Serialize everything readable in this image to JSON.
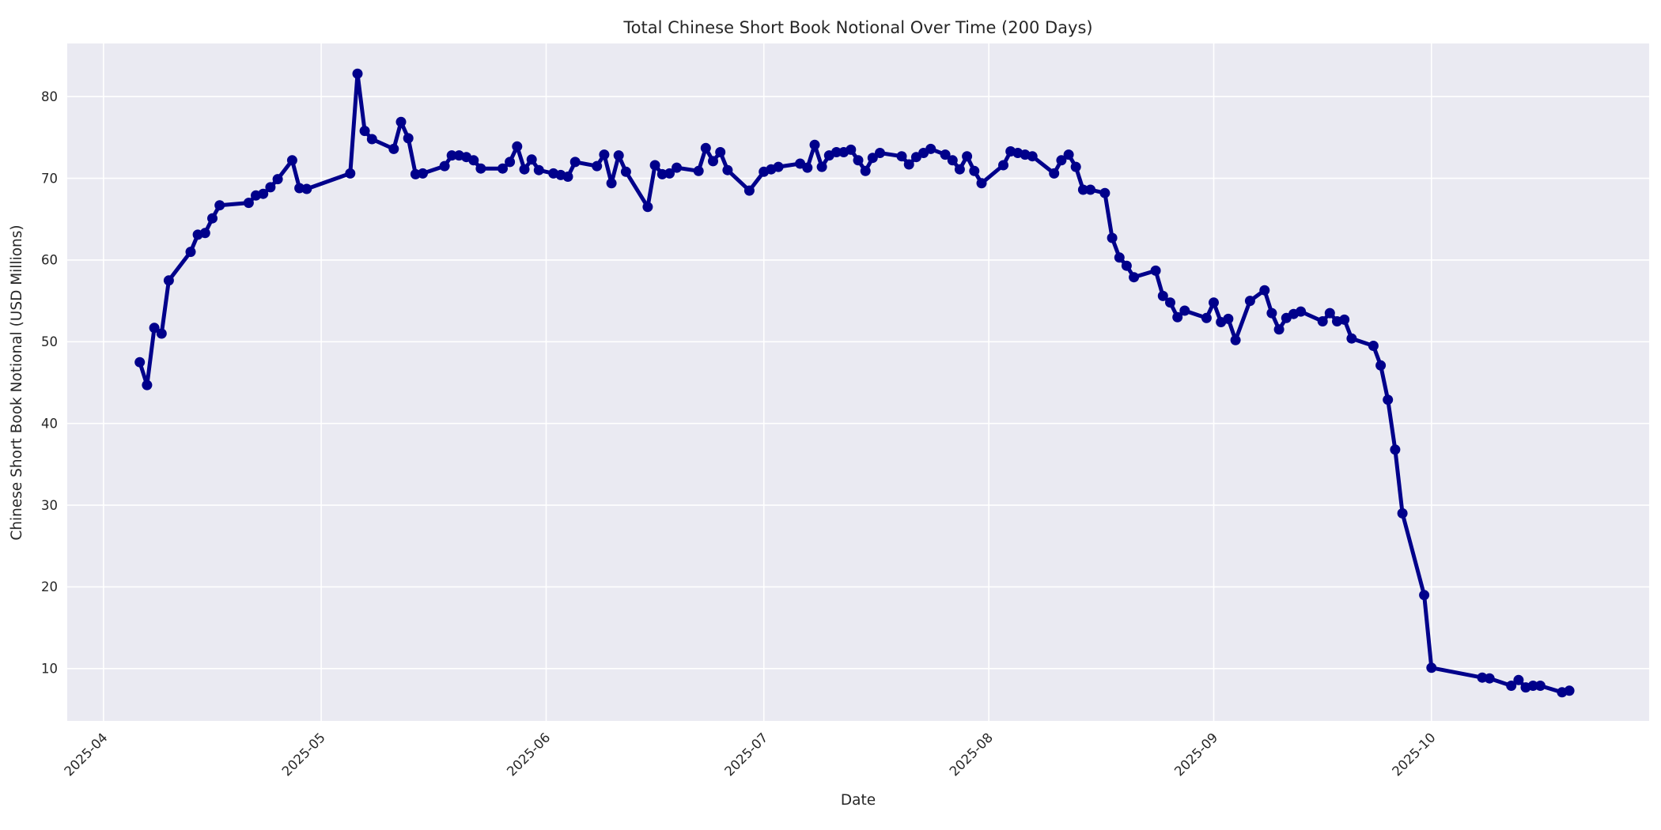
{
  "figure": {
    "title": "Total Chinese Short Book Notional Over Time (200 Days)",
    "xlabel": "Date",
    "ylabel": "Chinese Short Book Notional (USD Millions)"
  },
  "axes": {
    "x_tick_labels": [
      "2025-04",
      "2025-05",
      "2025-06",
      "2025-07",
      "2025-08",
      "2025-09",
      "2025-10"
    ],
    "y_tick_labels": [
      10,
      20,
      30,
      40,
      50,
      60,
      70,
      80
    ]
  },
  "colors": {
    "line": "#00008B",
    "marker": "#00008B",
    "plot_background": "#EAEAF2",
    "grid": "#FFFFFF",
    "text": "#262626",
    "figure_background": "#FFFFFF"
  },
  "chart_data": {
    "type": "line",
    "title": "Total Chinese Short Book Notional Over Time (200 Days)",
    "xlabel": "Date",
    "ylabel": "Chinese Short Book Notional (USD Millions)",
    "legend": "none",
    "grid": "on",
    "xlim": [
      "2025-03-27",
      "2025-10-31"
    ],
    "ylim": [
      3.6,
      86.5
    ],
    "x_ticks": [
      "2025-04-01",
      "2025-05-01",
      "2025-06-01",
      "2025-07-01",
      "2025-08-01",
      "2025-09-01",
      "2025-10-01"
    ],
    "y_ticks": [
      10,
      20,
      30,
      40,
      50,
      60,
      70,
      80
    ],
    "series": [
      {
        "name": "Chinese Short Book Notional",
        "x": [
          "2025-04-06",
          "2025-04-07",
          "2025-04-08",
          "2025-04-09",
          "2025-04-10",
          "2025-04-13",
          "2025-04-14",
          "2025-04-15",
          "2025-04-16",
          "2025-04-17",
          "2025-04-21",
          "2025-04-22",
          "2025-04-23",
          "2025-04-24",
          "2025-04-25",
          "2025-04-27",
          "2025-04-28",
          "2025-04-29",
          "2025-05-05",
          "2025-05-06",
          "2025-05-07",
          "2025-05-08",
          "2025-05-11",
          "2025-05-12",
          "2025-05-13",
          "2025-05-14",
          "2025-05-15",
          "2025-05-18",
          "2025-05-19",
          "2025-05-20",
          "2025-05-21",
          "2025-05-22",
          "2025-05-23",
          "2025-05-26",
          "2025-05-27",
          "2025-05-28",
          "2025-05-29",
          "2025-05-30",
          "2025-05-31",
          "2025-06-02",
          "2025-06-03",
          "2025-06-04",
          "2025-06-05",
          "2025-06-08",
          "2025-06-09",
          "2025-06-10",
          "2025-06-11",
          "2025-06-12",
          "2025-06-15",
          "2025-06-16",
          "2025-06-17",
          "2025-06-18",
          "2025-06-19",
          "2025-06-22",
          "2025-06-23",
          "2025-06-24",
          "2025-06-25",
          "2025-06-26",
          "2025-06-29",
          "2025-07-01",
          "2025-07-02",
          "2025-07-03",
          "2025-07-06",
          "2025-07-07",
          "2025-07-08",
          "2025-07-09",
          "2025-07-10",
          "2025-07-11",
          "2025-07-12",
          "2025-07-13",
          "2025-07-14",
          "2025-07-15",
          "2025-07-16",
          "2025-07-17",
          "2025-07-20",
          "2025-07-21",
          "2025-07-22",
          "2025-07-23",
          "2025-07-24",
          "2025-07-26",
          "2025-07-27",
          "2025-07-28",
          "2025-07-29",
          "2025-07-30",
          "2025-07-31",
          "2025-08-03",
          "2025-08-04",
          "2025-08-05",
          "2025-08-06",
          "2025-08-07",
          "2025-08-10",
          "2025-08-11",
          "2025-08-12",
          "2025-08-13",
          "2025-08-14",
          "2025-08-15",
          "2025-08-17",
          "2025-08-18",
          "2025-08-19",
          "2025-08-20",
          "2025-08-21",
          "2025-08-24",
          "2025-08-25",
          "2025-08-26",
          "2025-08-27",
          "2025-08-28",
          "2025-08-31",
          "2025-09-01",
          "2025-09-02",
          "2025-09-03",
          "2025-09-04",
          "2025-09-06",
          "2025-09-08",
          "2025-09-09",
          "2025-09-10",
          "2025-09-11",
          "2025-09-12",
          "2025-09-13",
          "2025-09-16",
          "2025-09-17",
          "2025-09-18",
          "2025-09-19",
          "2025-09-20",
          "2025-09-23",
          "2025-09-24",
          "2025-09-25",
          "2025-09-26",
          "2025-09-27",
          "2025-09-30",
          "2025-10-01",
          "2025-10-08",
          "2025-10-09",
          "2025-10-12",
          "2025-10-13",
          "2025-10-14",
          "2025-10-15",
          "2025-10-16",
          "2025-10-19",
          "2025-10-20"
        ],
        "y": [
          47.5,
          44.7,
          51.7,
          51.0,
          57.5,
          61.0,
          63.1,
          63.3,
          65.1,
          66.7,
          67.0,
          67.9,
          68.1,
          68.9,
          69.9,
          72.2,
          68.8,
          68.7,
          70.6,
          82.8,
          75.8,
          74.8,
          73.6,
          76.9,
          74.9,
          70.5,
          70.6,
          71.5,
          72.8,
          72.8,
          72.6,
          72.2,
          71.2,
          71.2,
          72.0,
          73.9,
          71.1,
          72.3,
          71.0,
          70.6,
          70.4,
          70.2,
          72.0,
          71.5,
          72.9,
          69.4,
          72.8,
          70.8,
          66.5,
          71.6,
          70.5,
          70.6,
          71.3,
          70.9,
          73.7,
          72.1,
          73.2,
          71.0,
          68.5,
          70.8,
          71.1,
          71.4,
          71.8,
          71.3,
          74.1,
          71.4,
          72.8,
          73.2,
          73.2,
          73.5,
          72.2,
          70.9,
          72.5,
          73.1,
          72.7,
          71.7,
          72.6,
          73.1,
          73.6,
          72.9,
          72.2,
          71.1,
          72.7,
          70.9,
          69.4,
          71.6,
          73.3,
          73.1,
          72.9,
          72.7,
          70.6,
          72.2,
          72.9,
          71.4,
          68.6,
          68.6,
          68.2,
          62.7,
          60.3,
          59.3,
          57.9,
          58.7,
          55.6,
          54.8,
          53.0,
          53.8,
          52.9,
          54.8,
          52.4,
          52.8,
          50.2,
          55.0,
          56.3,
          53.5,
          51.5,
          52.9,
          53.4,
          53.7,
          52.5,
          53.5,
          52.5,
          52.7,
          50.4,
          49.5,
          47.1,
          42.9,
          36.8,
          29.0,
          19.0,
          10.1,
          8.9,
          8.8,
          7.9,
          8.6,
          7.7,
          7.9,
          7.9,
          7.1,
          7.3
        ]
      }
    ]
  }
}
